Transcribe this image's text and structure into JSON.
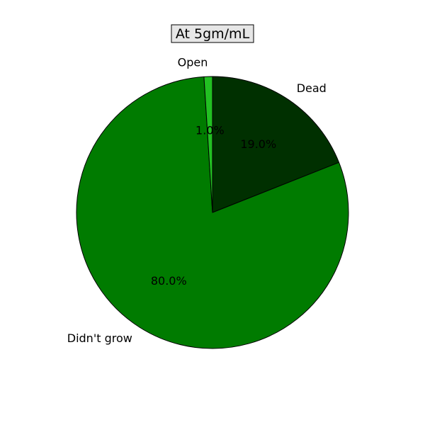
{
  "chart_data": {
    "type": "pie",
    "title": "At 5gm/mL",
    "slices": [
      {
        "label": "Dead",
        "value": 19.0,
        "pct_text": "19.0%",
        "color": "#003000"
      },
      {
        "label": "Didn't grow",
        "value": 80.0,
        "pct_text": "80.0%",
        "color": "#007b00"
      },
      {
        "label": "Open",
        "value": 1.0,
        "pct_text": "1.0%",
        "color": "#22c022"
      }
    ],
    "start_angle_deg": 90,
    "direction": "clockwise",
    "title_box": {
      "fill": "#e6e6e6",
      "stroke": "#000000"
    },
    "edge_color": "#000000"
  }
}
